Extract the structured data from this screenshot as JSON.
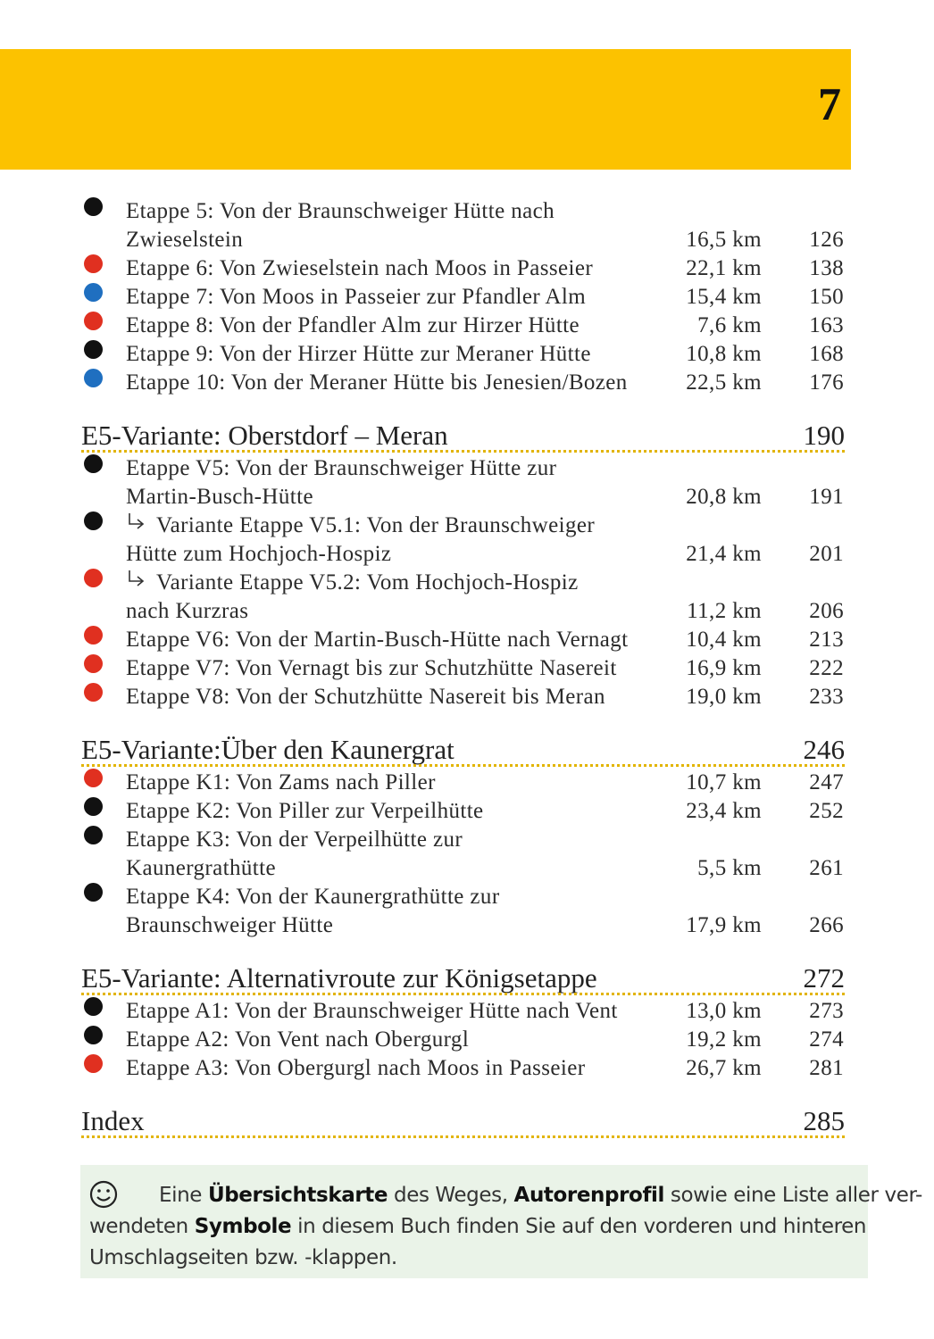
{
  "header": {
    "page_number": 7
  },
  "sections": [
    {
      "entries": [
        {
          "bullet": "#111111",
          "lines": [
            "Etappe 5: Von der Braunschweiger Hütte nach",
            "Zwieselstein"
          ],
          "distance": "16,5 km",
          "page": 126
        },
        {
          "bullet": "#e03020",
          "lines": [
            "Etappe 6: Von Zwieselstein nach Moos in Passeier"
          ],
          "distance": "22,1 km",
          "page": 138
        },
        {
          "bullet": "#1f6fc0",
          "lines": [
            "Etappe 7: Von Moos in Passeier zur Pfandler Alm"
          ],
          "distance": "15,4 km",
          "page": 150
        },
        {
          "bullet": "#e03020",
          "lines": [
            "Etappe 8: Von der Pfandler Alm zur Hirzer Hütte"
          ],
          "distance": "7,6 km",
          "page": 163
        },
        {
          "bullet": "#111111",
          "lines": [
            "Etappe 9: Von der Hirzer Hütte zur Meraner Hütte"
          ],
          "distance": "10,8 km",
          "page": 168
        },
        {
          "bullet": "#1f6fc0",
          "lines": [
            "Etappe 10: Von der Meraner Hütte bis Jenesien/Bozen"
          ],
          "distance": "22,5 km",
          "page": 176
        }
      ]
    },
    {
      "title": "E5-Variante: Oberstdorf – Meran",
      "page": 190,
      "entries": [
        {
          "bullet": "#111111",
          "lines": [
            "Etappe V5: Von der Braunschweiger Hütte zur",
            "Martin-Busch-Hütte"
          ],
          "distance": "20,8 km",
          "page": 191
        },
        {
          "bullet": "#111111",
          "variant": true,
          "lines": [
            "Variante Etappe V5.1: Von der Braunschweiger",
            "Hütte zum Hochjoch-Hospiz"
          ],
          "distance": "21,4 km",
          "page": 201
        },
        {
          "bullet": "#e03020",
          "variant": true,
          "lines": [
            "Variante Etappe V5.2: Vom Hochjoch-Hospiz",
            "nach Kurzras"
          ],
          "distance": "11,2 km",
          "page": 206
        },
        {
          "bullet": "#e03020",
          "lines": [
            "Etappe V6: Von der Martin-Busch-Hütte nach Vernagt"
          ],
          "distance": "10,4 km",
          "page": 213
        },
        {
          "bullet": "#e03020",
          "lines": [
            "Etappe V7: Von Vernagt bis zur Schutzhütte Nasereit"
          ],
          "distance": "16,9 km",
          "page": 222
        },
        {
          "bullet": "#e03020",
          "lines": [
            "Etappe V8: Von der Schutzhütte Nasereit bis Meran"
          ],
          "distance": "19,0 km",
          "page": 233
        }
      ]
    },
    {
      "title": "E5-Variante:Über den Kaunergrat",
      "page": 246,
      "entries": [
        {
          "bullet": "#e03020",
          "lines": [
            "Etappe K1: Von Zams nach Piller"
          ],
          "distance": "10,7 km",
          "page": 247
        },
        {
          "bullet": "#111111",
          "lines": [
            "Etappe K2: Von Piller zur Verpeilhütte"
          ],
          "distance": "23,4 km",
          "page": 252
        },
        {
          "bullet": "#111111",
          "lines": [
            "Etappe K3: Von der Verpeilhütte zur",
            "Kaunergrathütte"
          ],
          "distance": "5,5 km",
          "page": 261
        },
        {
          "bullet": "#111111",
          "lines": [
            "Etappe K4: Von der Kaunergrathütte zur",
            "Braunschweiger Hütte"
          ],
          "distance": "17,9 km",
          "page": 266
        }
      ]
    },
    {
      "title": "E5-Variante: Alternativroute zur Königsetappe",
      "page": 272,
      "entries": [
        {
          "bullet": "#111111",
          "lines": [
            "Etappe A1: Von der Braunschweiger Hütte nach Vent"
          ],
          "distance": "13,0 km",
          "page": 273
        },
        {
          "bullet": "#111111",
          "lines": [
            "Etappe A2: Von Vent nach Obergurgl"
          ],
          "distance": "19,2 km",
          "page": 274
        },
        {
          "bullet": "#e03020",
          "lines": [
            "Etappe A3: Von Obergurgl nach Moos in Passeier"
          ],
          "distance": "26,7 km",
          "page": 281
        }
      ]
    },
    {
      "title": "Index",
      "page": 285,
      "entries": []
    }
  ],
  "note": {
    "lines": [
      [
        {
          "text": "Eine "
        },
        {
          "text": "Übersichtskarte",
          "bold": true
        },
        {
          "text": " des Weges, "
        },
        {
          "text": "Autorenprofil",
          "bold": true
        },
        {
          "text": " sowie eine Liste aller ver-"
        }
      ],
      [
        {
          "text": "wendeten "
        },
        {
          "text": "Symbole",
          "bold": true
        },
        {
          "text": " in diesem Buch finden Sie auf den vorderen und hinteren"
        }
      ],
      [
        {
          "text": "Umschlagseiten bzw. -klappen."
        }
      ]
    ]
  }
}
